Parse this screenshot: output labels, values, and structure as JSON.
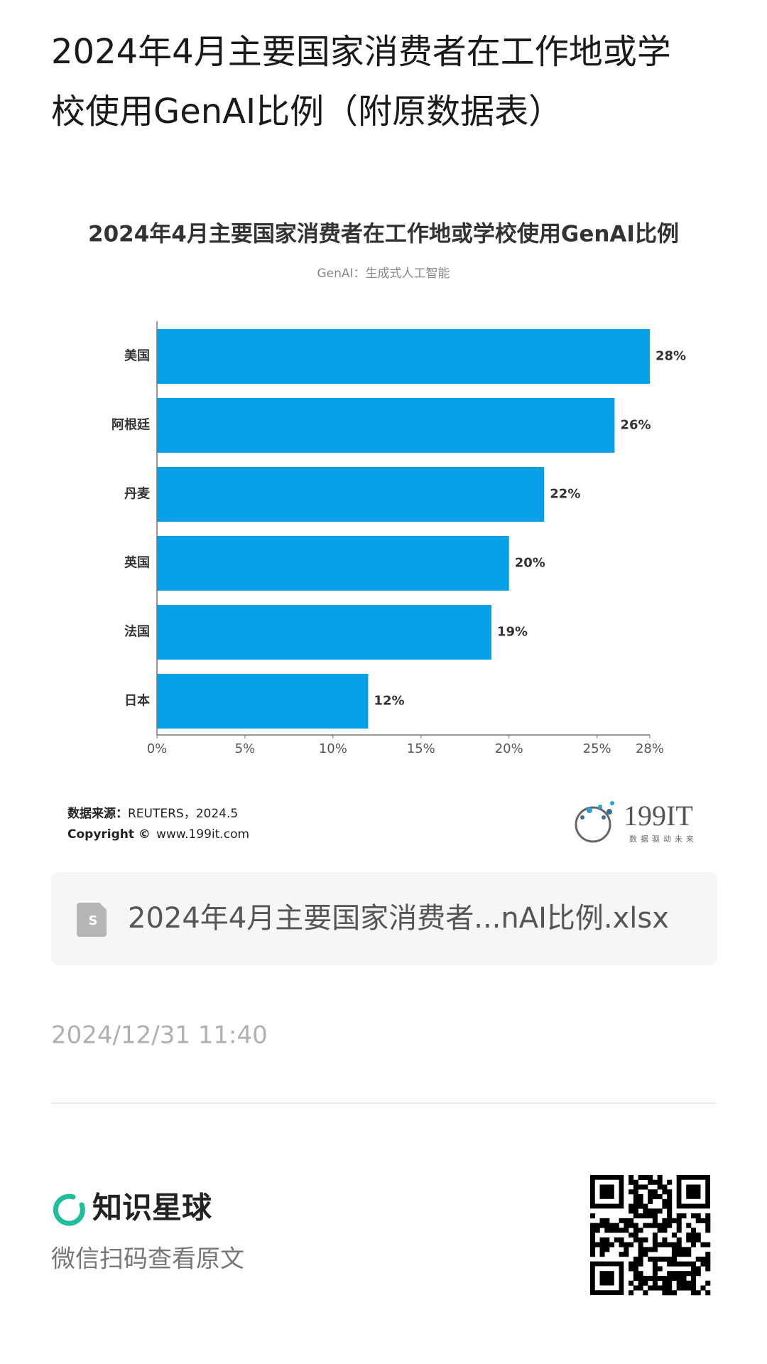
{
  "header": {
    "title_lines": [
      "2024年4月主要国家消费者在工作地或学",
      "校使用GenAI比例（附原数据表）"
    ]
  },
  "chart_data": {
    "type": "hbar",
    "title": "2024年4月主要国家消费者在工作地或学校使用GenAI比例",
    "subtitle": "GenAI：生成式人工智能",
    "categories": [
      "美国",
      "阿根廷",
      "丹麦",
      "英国",
      "法国",
      "日本"
    ],
    "values": [
      28,
      26,
      22,
      20,
      19,
      12
    ],
    "value_labels": [
      "28%",
      "26%",
      "22%",
      "20%",
      "19%",
      "12%"
    ],
    "color": "#079fe6",
    "xlim": [
      0,
      28
    ],
    "xticks": [
      {
        "value": 0,
        "label": "0%"
      },
      {
        "value": 5,
        "label": "5%"
      },
      {
        "value": 10,
        "label": "10%"
      },
      {
        "value": 15,
        "label": "15%"
      },
      {
        "value": 20,
        "label": "20%"
      },
      {
        "value": 25,
        "label": "25%"
      },
      {
        "value": 28,
        "label": "28%"
      }
    ]
  },
  "source": {
    "label": "数据来源：",
    "text": "REUTERS，2024.5",
    "copyright": "Copyright ©",
    "site": "www.199it.com"
  },
  "logo": {
    "name": "199IT",
    "slogan": "数据驱动未来"
  },
  "file": {
    "name": "2024年4月主要国家消费者...nAI比例.xlsx"
  },
  "date": "2024/12/31 11:40",
  "footer": {
    "brand": "知识星球",
    "hint": "微信扫码查看原文"
  }
}
